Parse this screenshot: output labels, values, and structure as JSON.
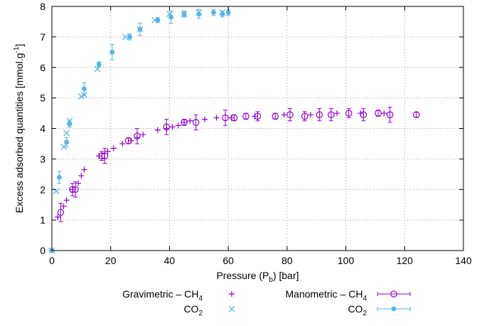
{
  "chart_data": {
    "type": "scatter",
    "xlabel": "Pressure (P",
    "xlabel_sub": "b",
    "xlabel_suffix": ") [bar]",
    "ylabel": "Excess adsorbed quantities [mmol.g",
    "ylabel_sup": "-1",
    "ylabel_suffix": "]",
    "xlim": [
      0,
      140
    ],
    "ylim": [
      0,
      8
    ],
    "xticks": [
      0,
      20,
      40,
      60,
      80,
      100,
      120,
      140
    ],
    "yticks": [
      0,
      1,
      2,
      3,
      4,
      5,
      6,
      7,
      8
    ],
    "grid": true,
    "legend": {
      "placement": "bottom",
      "gravimetric_label": "Gravimetric – CH",
      "manometric_label": "Manometric – CH",
      "ch4_sub": "4",
      "co2_label": "CO",
      "co2_sub": "2"
    },
    "colors": {
      "ch4": "#9400d3",
      "co2": "#56b4e9"
    },
    "series": [
      {
        "key": "grav_ch4",
        "marker": "plus",
        "color": "#9400d3",
        "points": [
          [
            0,
            0
          ],
          [
            2,
            1.1
          ],
          [
            4,
            1.45
          ],
          [
            5,
            1.65
          ],
          [
            7,
            2.0
          ],
          [
            9,
            2.2
          ],
          [
            10,
            2.45
          ],
          [
            11,
            2.65
          ],
          [
            16,
            3.1
          ],
          [
            19,
            3.25
          ],
          [
            21,
            3.35
          ],
          [
            24,
            3.5
          ],
          [
            27,
            3.6
          ],
          [
            29,
            3.7
          ],
          [
            31,
            3.8
          ],
          [
            36,
            3.95
          ],
          [
            39,
            4.0
          ],
          [
            41,
            4.05
          ],
          [
            43,
            4.1
          ],
          [
            45,
            4.2
          ],
          [
            47,
            4.25
          ],
          [
            52,
            4.3
          ],
          [
            56,
            4.35
          ],
          [
            61,
            4.35
          ],
          [
            69,
            4.4
          ],
          [
            79,
            4.45
          ],
          [
            88,
            4.45
          ],
          [
            97,
            4.5
          ],
          [
            105,
            4.5
          ],
          [
            113,
            4.5
          ]
        ]
      },
      {
        "key": "grav_co2",
        "marker": "cross",
        "color": "#56b4e9",
        "points": [
          [
            0,
            0
          ],
          [
            1.5,
            1.95
          ],
          [
            4,
            3.4
          ],
          [
            5,
            3.85
          ],
          [
            6,
            4.25
          ],
          [
            10,
            5.05
          ],
          [
            11,
            5.1
          ],
          [
            15.5,
            5.95
          ],
          [
            25,
            7.0
          ],
          [
            30,
            7.25
          ],
          [
            35,
            7.55
          ],
          [
            40,
            7.75
          ],
          [
            45,
            7.75
          ],
          [
            50,
            7.8
          ],
          [
            58,
            7.8
          ]
        ]
      },
      {
        "key": "mano_ch4",
        "marker": "circle-open",
        "color": "#9400d3",
        "points": [
          [
            3,
            1.25,
            0.3
          ],
          [
            7,
            2.0,
            0.2
          ],
          [
            8,
            2.0,
            0.25
          ],
          [
            17,
            3.1,
            0.15
          ],
          [
            18,
            3.1,
            0.25
          ],
          [
            26,
            3.6,
            0.1
          ],
          [
            29,
            3.75,
            0.25
          ],
          [
            39,
            4.05,
            0.25
          ],
          [
            45,
            4.2,
            0.1
          ],
          [
            49,
            4.2,
            0.25
          ],
          [
            59,
            4.35,
            0.25
          ],
          [
            62,
            4.35,
            0.1
          ],
          [
            66,
            4.4,
            0.1
          ],
          [
            70,
            4.4,
            0.15
          ],
          [
            76,
            4.4,
            0.1
          ],
          [
            81,
            4.45,
            0.2
          ],
          [
            86,
            4.4,
            0.15
          ],
          [
            91,
            4.45,
            0.2
          ],
          [
            95,
            4.45,
            0.2
          ],
          [
            101,
            4.5,
            0.15
          ],
          [
            106,
            4.45,
            0.2
          ],
          [
            111,
            4.5,
            0.1
          ],
          [
            115,
            4.45,
            0.25
          ],
          [
            124,
            4.45,
            0.08
          ]
        ]
      },
      {
        "key": "mano_co2",
        "marker": "circle-filled",
        "color": "#56b4e9",
        "points": [
          [
            0,
            0,
            0.05
          ],
          [
            2.5,
            2.4,
            0.2
          ],
          [
            5,
            3.55,
            0.15
          ],
          [
            6,
            4.15,
            0.1
          ],
          [
            11,
            5.3,
            0.2
          ],
          [
            16,
            6.1,
            0.08
          ],
          [
            20.5,
            6.5,
            0.25
          ],
          [
            26.5,
            7.0,
            0.1
          ],
          [
            30,
            7.25,
            0.2
          ],
          [
            36,
            7.55,
            0.08
          ],
          [
            40.5,
            7.65,
            0.2
          ],
          [
            45,
            7.75,
            0.1
          ],
          [
            50,
            7.75,
            0.15
          ],
          [
            55,
            7.8,
            0.1
          ],
          [
            58,
            7.75,
            0.1
          ],
          [
            60,
            7.8,
            0.1
          ]
        ]
      }
    ]
  }
}
